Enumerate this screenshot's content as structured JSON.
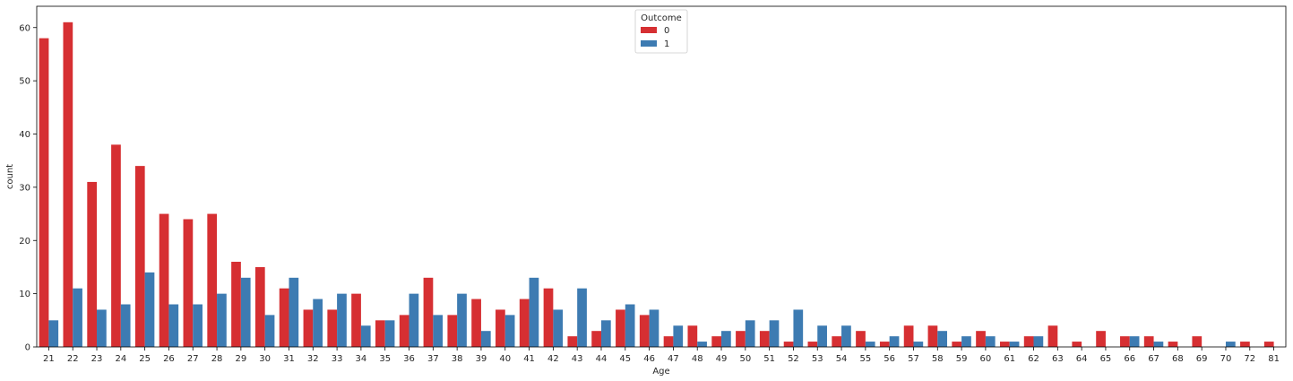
{
  "chart_data": {
    "type": "bar",
    "xlabel": "Age",
    "ylabel": "count",
    "ylim": [
      0,
      64
    ],
    "yticks": [
      0,
      10,
      20,
      30,
      40,
      50,
      60
    ],
    "grid": false,
    "legend": {
      "title": "Outcome",
      "placement": "top-center"
    },
    "categories": [
      "21",
      "22",
      "23",
      "24",
      "25",
      "26",
      "27",
      "28",
      "29",
      "30",
      "31",
      "32",
      "33",
      "34",
      "35",
      "36",
      "37",
      "38",
      "39",
      "40",
      "41",
      "42",
      "43",
      "44",
      "45",
      "46",
      "47",
      "48",
      "49",
      "50",
      "51",
      "52",
      "53",
      "54",
      "55",
      "56",
      "57",
      "58",
      "59",
      "60",
      "61",
      "62",
      "63",
      "64",
      "65",
      "66",
      "67",
      "68",
      "69",
      "70",
      "72",
      "81"
    ],
    "series": [
      {
        "name": "0",
        "color": "#d62f32",
        "values": [
          58,
          61,
          31,
          38,
          34,
          25,
          24,
          25,
          16,
          15,
          11,
          7,
          7,
          10,
          5,
          6,
          13,
          6,
          9,
          7,
          9,
          11,
          2,
          3,
          7,
          6,
          2,
          4,
          2,
          3,
          3,
          1,
          1,
          2,
          3,
          1,
          4,
          4,
          1,
          3,
          1,
          2,
          4,
          1,
          3,
          2,
          2,
          1,
          2,
          0,
          1,
          1
        ]
      },
      {
        "name": "1",
        "color": "#3d7bb2",
        "values": [
          5,
          11,
          7,
          8,
          14,
          8,
          8,
          10,
          13,
          6,
          13,
          9,
          10,
          4,
          5,
          10,
          6,
          10,
          3,
          6,
          13,
          7,
          11,
          5,
          8,
          7,
          4,
          1,
          3,
          5,
          5,
          7,
          4,
          4,
          1,
          2,
          1,
          3,
          2,
          2,
          1,
          2,
          0,
          0,
          0,
          2,
          1,
          0,
          0,
          1,
          0,
          0
        ]
      }
    ]
  }
}
